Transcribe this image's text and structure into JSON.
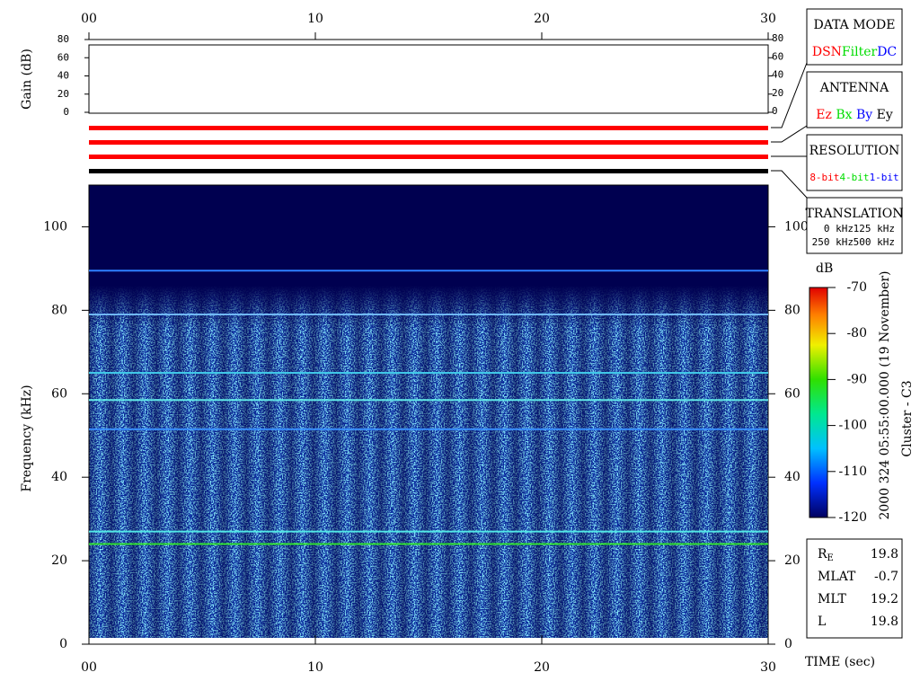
{
  "chart_data": {
    "type": "spectrogram",
    "xlabel": "TIME (sec)",
    "ylabel": "Frequency (kHz)",
    "xlim": [
      0,
      30
    ],
    "xticks": [
      {
        "value": 0,
        "label": "00"
      },
      10,
      20,
      30
    ],
    "ylim": [
      0,
      110
    ],
    "yticks": [
      0,
      20,
      40,
      60,
      80,
      100
    ],
    "lines": [
      {
        "freq": 89.5,
        "color": "#2f80ff"
      },
      {
        "freq": 79,
        "color": "#70b8ff"
      },
      {
        "freq": 65,
        "color": "#40c8e8"
      },
      {
        "freq": 58.5,
        "color": "#60e8e8"
      },
      {
        "freq": 51.5,
        "color": "#3a90ff"
      },
      {
        "freq": 27,
        "color": "#50e8e8"
      },
      {
        "freq": 24,
        "color": "#30e030"
      }
    ],
    "gain": {
      "ylabel": "Gain (dB)",
      "ylim": [
        0,
        80
      ],
      "yticks": [
        0,
        20,
        40,
        60,
        80
      ]
    },
    "colorbar": {
      "label": "dB",
      "lim": [
        -120,
        -70
      ],
      "ticks": [
        -120,
        -110,
        -100,
        -90,
        -80,
        -70
      ]
    },
    "caption": [
      "2000 324 05:55:00.000 (19 November)",
      "Cluster - C3"
    ]
  },
  "panels": [
    {
      "title": "DATA MODE",
      "items": [
        {
          "text": "DSN",
          "color": "#ff0000"
        },
        {
          "text": "Filter",
          "color": "#00dd00"
        },
        {
          "text": "DC",
          "color": "#0000ff"
        }
      ]
    },
    {
      "title": "ANTENNA",
      "items": [
        {
          "text": "Ez",
          "color": "#ff0000"
        },
        {
          "text": "Bx",
          "color": "#00dd00"
        },
        {
          "text": "By",
          "color": "#0000ff"
        },
        {
          "text": "Ey",
          "color": "#000000"
        }
      ]
    },
    {
      "title": "RESOLUTION",
      "items": [
        {
          "text": "8-bit",
          "color": "#ff0000"
        },
        {
          "text": "4-bit",
          "color": "#00dd00"
        },
        {
          "text": "1-bit",
          "color": "#0000ff"
        }
      ]
    },
    {
      "title": "TRANSLATION",
      "items": [
        {
          "text": "0 kHz",
          "color": "#ff0000"
        },
        {
          "text": "125 kHz",
          "color": "#00dd00"
        },
        {
          "text": "250 kHz",
          "color": "#0000ff"
        },
        {
          "text": "500 kHz",
          "color": "#000000"
        }
      ]
    }
  ],
  "orbit": [
    {
      "label": "R",
      "sub": "E",
      "value": 19.8
    },
    {
      "label": "MLAT",
      "value": -0.7
    },
    {
      "label": "MLT",
      "value": 19.2
    },
    {
      "label": "L",
      "value": 19.8
    }
  ]
}
